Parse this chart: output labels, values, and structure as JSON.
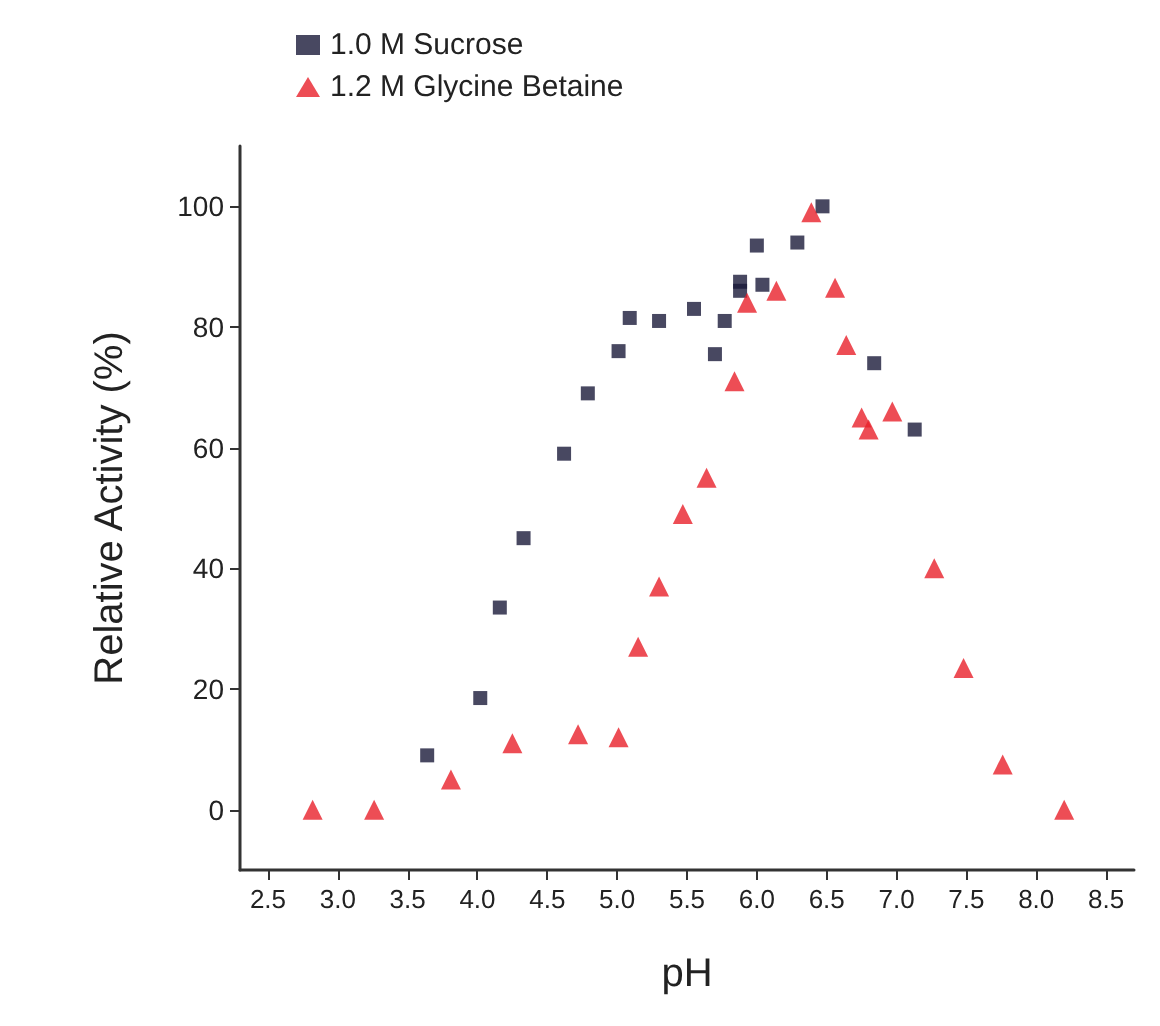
{
  "chart_data": {
    "type": "scatter",
    "xlabel": "pH",
    "ylabel": "Relative Activity (%)",
    "xlim": [
      2.3,
      8.7
    ],
    "ylim": [
      -10,
      110
    ],
    "xticks": [
      2.5,
      {
        "value": 3,
        "label": "3.0"
      },
      3.5,
      {
        "value": 4,
        "label": "4.0"
      },
      4.5,
      {
        "value": 5,
        "label": "5.0"
      },
      5.5,
      {
        "value": 6,
        "label": "6.0"
      },
      6.5,
      {
        "value": 7,
        "label": "7.0"
      },
      7.5,
      {
        "value": 8,
        "label": "8.0"
      },
      8.5
    ],
    "yticks": [
      0,
      20,
      40,
      60,
      80,
      100
    ],
    "grid": false,
    "legend": "top left",
    "series": [
      {
        "name": "1.0 M Sucrose",
        "color": "#1a1a3a",
        "marker": "square",
        "x": [
          3.64,
          4.02,
          4.16,
          4.33,
          4.62,
          4.79,
          5.01,
          5.09,
          5.3,
          5.55,
          5.7,
          5.77,
          5.88,
          5.88,
          6.0,
          6.04,
          6.29,
          6.47,
          6.84,
          7.13
        ],
        "values": [
          9,
          18.5,
          33.5,
          45,
          59,
          69,
          76,
          81.5,
          81,
          83,
          75.5,
          81,
          87.5,
          86,
          93.5,
          87,
          94,
          100,
          74,
          63
        ]
      },
      {
        "name": "1.2 M Glycine Betaine",
        "color": "#e8202a",
        "marker": "triangle",
        "x": [
          2.82,
          3.26,
          3.81,
          4.25,
          4.72,
          5.01,
          5.15,
          5.3,
          5.47,
          5.64,
          5.84,
          5.93,
          6.14,
          6.39,
          6.56,
          6.64,
          6.75,
          6.8,
          6.97,
          7.27,
          7.48,
          7.76,
          8.2
        ],
        "values": [
          0,
          0,
          5,
          11,
          12.5,
          12,
          27,
          37,
          49,
          55,
          71,
          84,
          86,
          99,
          86.5,
          77,
          65,
          63,
          66,
          40,
          23.5,
          7.5,
          0
        ]
      }
    ]
  }
}
